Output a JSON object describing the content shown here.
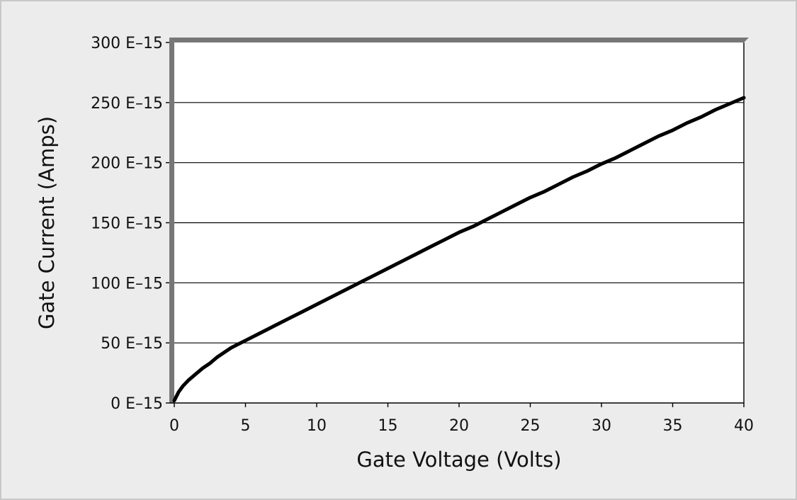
{
  "chart_data": {
    "type": "line",
    "xlabel": "Gate Voltage (Volts)",
    "ylabel": "Gate Current (Amps)",
    "xlim": [
      0,
      40
    ],
    "ylim": [
      0,
      300
    ],
    "x_ticks": [
      "0",
      "5",
      "10",
      "15",
      "20",
      "25",
      "30",
      "35",
      "40"
    ],
    "y_ticks": [
      "0 E–15",
      "50 E–15",
      "100 E–15",
      "150 E–15",
      "200 E–15",
      "250 E–15",
      "300 E–15"
    ],
    "grid": "horizontal",
    "series": [
      {
        "x": [
          0,
          0.3,
          0.6,
          1,
          1.5,
          2,
          2.5,
          3,
          3.5,
          4,
          4.5,
          5,
          6,
          7,
          8,
          9,
          10,
          11,
          12,
          13,
          14,
          15,
          16,
          17,
          18,
          19,
          20,
          21,
          22,
          23,
          24,
          25,
          26,
          27,
          28,
          29,
          30,
          31,
          32,
          33,
          34,
          35,
          36,
          37,
          38,
          39,
          40
        ],
        "y": [
          2,
          9,
          14,
          19,
          24,
          29,
          33,
          38,
          42,
          46,
          49,
          52,
          58,
          64,
          70,
          76,
          82,
          88,
          94,
          100,
          106,
          112,
          118,
          124,
          130,
          136,
          142,
          147,
          153,
          159,
          165,
          171,
          176,
          182,
          188,
          193,
          199,
          204,
          210,
          216,
          222,
          227,
          233,
          238,
          244,
          249,
          254
        ]
      }
    ],
    "line_color": "#000000",
    "axis_color": "#777777"
  }
}
